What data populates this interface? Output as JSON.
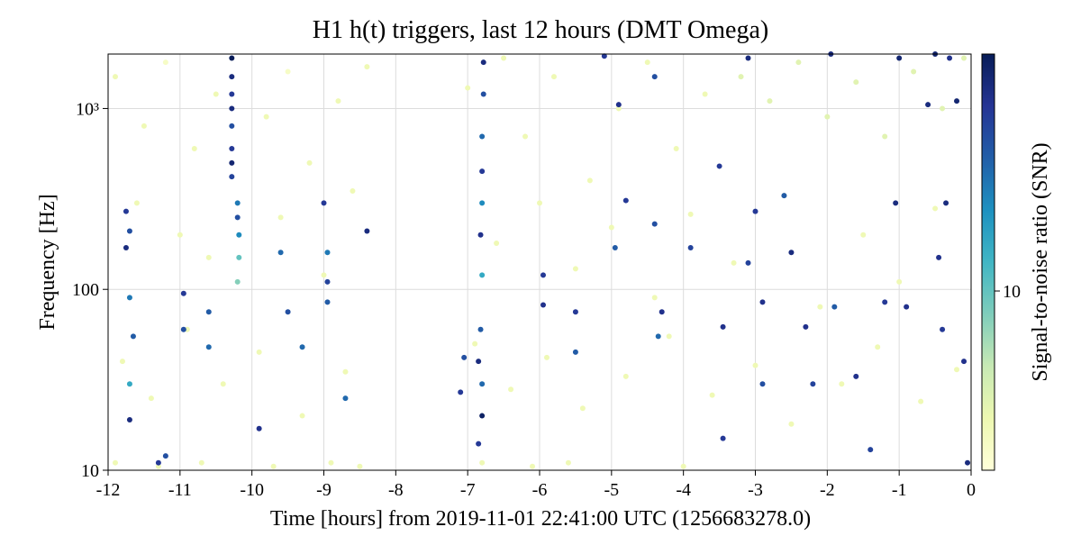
{
  "chart_data": {
    "type": "scatter",
    "title": "H1 h(t) triggers, last 12 hours (DMT Omega)",
    "xlabel": "Time [hours] from 2019-11-01 22:41:00 UTC (1256683278.0)",
    "ylabel": "Frequency [Hz]",
    "colorbar_label": "Signal-to-noise ratio (SNR)",
    "xlim": [
      -12,
      0
    ],
    "xticks": [
      -12,
      -11,
      -10,
      -9,
      -8,
      -7,
      -6,
      -5,
      -4,
      -3,
      -2,
      -1,
      0
    ],
    "ylim": [
      10,
      2000
    ],
    "yscale": "log",
    "yticks": [
      10,
      100,
      {
        "value": 1000,
        "label": "10³"
      }
    ],
    "clim": [
      5,
      25
    ],
    "cscale": "log",
    "cticks": [
      10
    ],
    "colormap": [
      "#ffffd9",
      "#edf8b1",
      "#c7e9b4",
      "#7fcdbb",
      "#41b6c4",
      "#1d91c0",
      "#225ea8",
      "#253494",
      "#081d58"
    ],
    "grid": true,
    "series": [
      {
        "name": "SNR",
        "x": [
          -11.9,
          -11.5,
          -11.2,
          -10.8,
          -10.5,
          -9.8,
          -9.5,
          -9.2,
          -8.8,
          -8.4,
          -7.0,
          -6.5,
          -6.2,
          -5.8,
          -5.3,
          -4.9,
          -4.5,
          -4.1,
          -3.7,
          -3.2,
          -2.8,
          -2.4,
          -2.0,
          -1.6,
          -1.2,
          -0.8,
          -0.4,
          -0.1,
          -11.6,
          -11.0,
          -10.6,
          -9.6,
          -9.0,
          -8.6,
          -6.6,
          -6.0,
          -5.5,
          -5.0,
          -4.4,
          -3.9,
          -3.3,
          -2.6,
          -2.1,
          -1.5,
          -1.0,
          -0.5,
          -11.8,
          -11.4,
          -10.9,
          -10.4,
          -9.9,
          -9.3,
          -8.7,
          -6.9,
          -6.4,
          -5.9,
          -5.4,
          -4.8,
          -4.2,
          -3.6,
          -3.0,
          -2.5,
          -1.8,
          -1.3,
          -0.7,
          -0.2,
          -11.9,
          -11.3,
          -10.7,
          -9.7,
          -8.9,
          -8.5,
          -6.8,
          -6.1,
          -5.6,
          -4.0,
          -10.28,
          -10.28,
          -10.28,
          -10.28,
          -10.28,
          -10.28,
          -10.28,
          -10.28,
          -10.2,
          -10.2,
          -10.18,
          -10.18,
          -10.2,
          -6.78,
          -6.78,
          -6.8,
          -6.8,
          -6.8,
          -6.82,
          -6.8,
          -6.82,
          -6.85,
          -6.8,
          -6.8,
          -6.85,
          -11.75,
          -11.7,
          -11.75,
          -11.7,
          -11.65,
          -11.7,
          -11.7,
          -11.3,
          -11.2,
          -10.95,
          -10.95,
          -10.6,
          -10.6,
          -9.9,
          -9.6,
          -9.5,
          -9.3,
          -9.0,
          -8.95,
          -8.95,
          -8.95,
          -8.7,
          -8.4,
          -7.1,
          -7.05,
          -5.95,
          -5.95,
          -5.5,
          -5.5,
          -4.95,
          -4.8,
          -4.4,
          -4.3,
          -4.35,
          -3.9,
          -3.5,
          -3.45,
          -3.45,
          -3.1,
          -3.0,
          -2.9,
          -2.9,
          -2.6,
          -2.5,
          -2.3,
          -2.2,
          -1.95,
          -1.9,
          -1.6,
          -1.4,
          -1.2,
          -1.05,
          -1.0,
          -0.9,
          -0.6,
          -0.5,
          -0.45,
          -0.4,
          -0.35,
          -0.3,
          -0.2,
          -0.1,
          -0.05,
          -5.1,
          -4.9,
          -4.4,
          -3.1
        ],
        "values": [
          1500,
          800,
          1800,
          600,
          1200,
          900,
          1600,
          500,
          1100,
          1700,
          1300,
          1900,
          700,
          1500,
          400,
          1000,
          1800,
          600,
          1200,
          1500,
          1100,
          1800,
          900,
          1400,
          700,
          1600,
          1000,
          1900,
          300,
          200,
          150,
          250,
          120,
          350,
          180,
          300,
          130,
          220,
          90,
          260,
          140,
          330,
          80,
          200,
          110,
          280,
          40,
          25,
          60,
          30,
          45,
          20,
          35,
          50,
          28,
          42,
          22,
          33,
          55,
          26,
          38,
          18,
          30,
          48,
          24,
          36,
          11,
          10.5,
          11,
          10.5,
          11,
          10.5,
          11,
          10.5,
          11,
          10.5,
          1900,
          1500,
          1200,
          1000,
          800,
          600,
          500,
          420,
          300,
          250,
          200,
          150,
          110,
          1800,
          1200,
          700,
          450,
          300,
          200,
          120,
          60,
          40,
          30,
          20,
          14,
          270,
          210,
          170,
          90,
          55,
          30,
          19,
          11,
          12,
          95,
          60,
          75,
          48,
          17,
          160,
          75,
          48,
          300,
          160,
          110,
          85,
          25,
          210,
          27,
          42,
          120,
          82,
          75,
          45,
          170,
          310,
          230,
          75,
          55,
          170,
          480,
          62,
          15,
          140,
          270,
          85,
          30,
          330,
          160,
          62,
          30,
          2000,
          80,
          33,
          13,
          85,
          300,
          1900,
          80,
          1050,
          2000,
          150,
          60,
          300,
          1900,
          1100,
          40,
          11,
          1950,
          1050,
          1500,
          1900
        ],
        "snr": [
          6,
          6,
          5.5,
          6,
          6,
          6,
          5.5,
          6,
          6,
          6,
          6,
          6,
          6,
          6,
          6,
          6,
          6,
          6,
          6,
          6.5,
          6.5,
          6.5,
          6.5,
          6.5,
          6.5,
          6.5,
          6.5,
          6.5,
          6,
          6,
          6,
          6,
          6,
          6,
          6,
          6,
          6,
          6,
          6,
          6,
          6,
          6,
          6,
          6,
          6,
          6,
          6,
          6,
          6,
          6,
          6,
          6,
          6,
          6,
          6,
          6,
          6,
          6,
          6,
          6,
          6,
          6,
          6,
          6,
          6,
          6,
          6,
          6,
          6,
          6,
          6,
          6,
          6,
          6,
          6,
          6,
          25,
          22,
          20,
          22,
          18,
          20,
          23,
          19,
          15,
          18,
          14,
          10,
          9,
          22,
          18,
          16,
          20,
          14,
          21,
          12,
          17,
          22,
          16,
          24,
          20,
          20,
          18,
          22,
          15,
          17,
          12,
          22,
          20,
          18,
          20,
          18,
          17,
          16,
          21,
          16,
          18,
          16,
          20,
          15,
          19,
          17,
          16,
          22,
          20,
          18,
          20,
          21,
          20,
          17,
          17,
          20,
          18,
          21,
          16,
          19,
          20,
          21,
          20,
          19,
          20,
          21,
          18,
          17,
          22,
          21,
          19,
          22,
          17,
          21,
          19,
          20,
          22,
          23,
          21,
          22,
          23,
          21,
          20,
          22,
          21,
          23,
          21,
          22,
          20,
          21,
          18,
          22
        ]
      }
    ]
  }
}
